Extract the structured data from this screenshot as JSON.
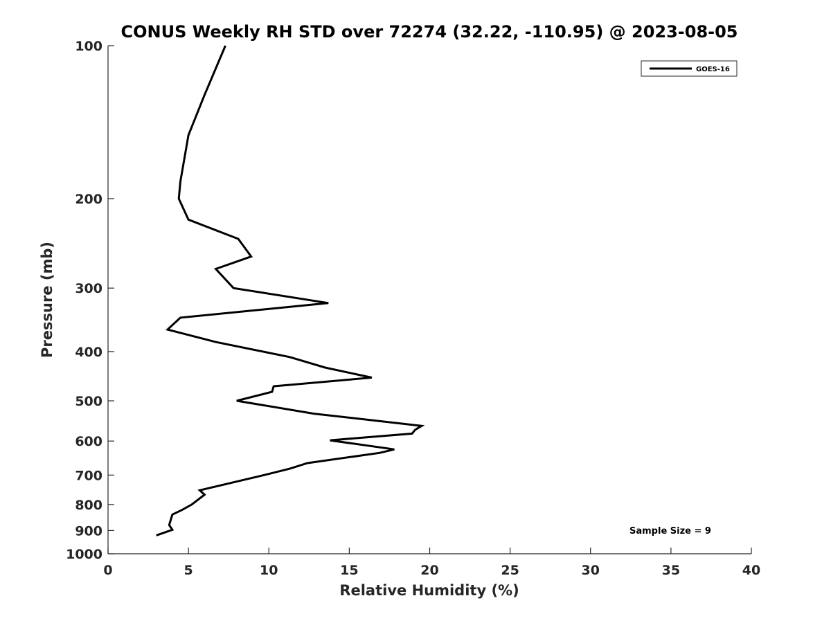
{
  "chart_data": {
    "type": "line",
    "title": "CONUS Weekly RH STD over 72274 (32.22, -110.95) @ 2023-08-05",
    "xlabel": "Relative Humidity (%)",
    "ylabel": "Pressure (mb)",
    "xlim": [
      0,
      40
    ],
    "ylim": [
      100,
      1000
    ],
    "yscale": "log",
    "yreversed": true,
    "x_ticks": [
      0,
      5,
      10,
      15,
      20,
      25,
      30,
      35,
      40
    ],
    "x_tick_labels": [
      "0",
      "5",
      "10",
      "15",
      "20",
      "25",
      "30",
      "35",
      "40"
    ],
    "y_ticks": [
      100,
      200,
      300,
      400,
      500,
      600,
      700,
      800,
      900,
      1000
    ],
    "y_tick_labels": [
      "100",
      "200",
      "300",
      "400",
      "500",
      "600",
      "700",
      "800",
      "900",
      "1000"
    ],
    "grid": false,
    "legend_position": "top-right",
    "annotation": "Sample Size = 9",
    "series": [
      {
        "name": "GOES-16",
        "color": "#000000",
        "points": [
          [
            7.3,
            100
          ],
          [
            6.0,
            125
          ],
          [
            5.0,
            150
          ],
          [
            4.7,
            170
          ],
          [
            4.5,
            185
          ],
          [
            4.4,
            200
          ],
          [
            5.0,
            220
          ],
          [
            8.1,
            240
          ],
          [
            8.9,
            260
          ],
          [
            6.7,
            275
          ],
          [
            7.8,
            300
          ],
          [
            13.7,
            321
          ],
          [
            4.5,
            343
          ],
          [
            3.7,
            362
          ],
          [
            6.7,
            383
          ],
          [
            11.3,
            410
          ],
          [
            13.5,
            430
          ],
          [
            16.4,
            450
          ],
          [
            10.3,
            468
          ],
          [
            10.2,
            480
          ],
          [
            8.0,
            500
          ],
          [
            12.8,
            530
          ],
          [
            19.5,
            560
          ],
          [
            19.1,
            570
          ],
          [
            18.9,
            580
          ],
          [
            13.8,
            598
          ],
          [
            17.8,
            623
          ],
          [
            16.9,
            633
          ],
          [
            12.4,
            663
          ],
          [
            11.3,
            680
          ],
          [
            9.7,
            700
          ],
          [
            5.7,
            750
          ],
          [
            6.0,
            765
          ],
          [
            5.2,
            800
          ],
          [
            4.6,
            820
          ],
          [
            4.0,
            837
          ],
          [
            3.8,
            878
          ],
          [
            4.0,
            897
          ],
          [
            3.0,
            920
          ]
        ]
      }
    ]
  }
}
